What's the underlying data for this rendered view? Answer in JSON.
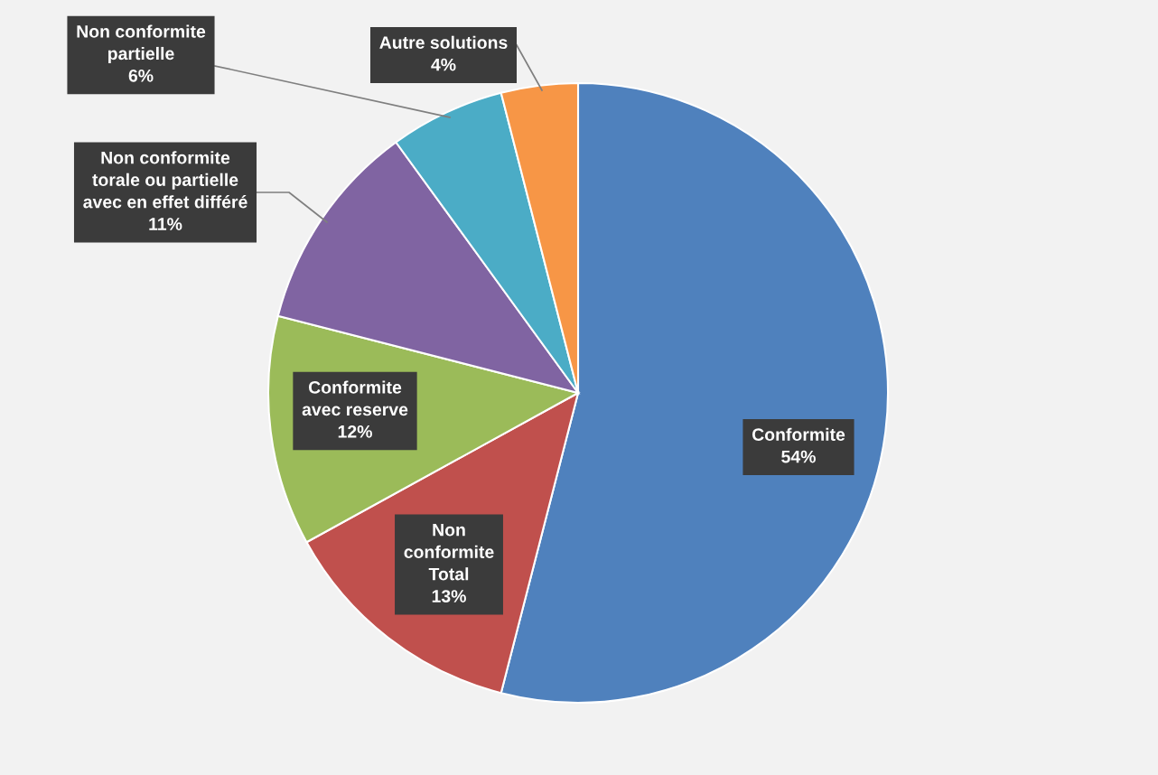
{
  "chart_data": {
    "type": "pie",
    "categories": [
      "Conformite",
      "Non\nconformite\nTotal",
      "Conformite\navec reserve",
      "Non conformite\ntorale ou partielle\navec en effet différé",
      "Non conformite\npartielle",
      "Autre solutions"
    ],
    "values": [
      54,
      13,
      12,
      11,
      6,
      4
    ],
    "colors": [
      "#4f81bd",
      "#c0504d",
      "#9bbb59",
      "#8064a2",
      "#4bacc6",
      "#f79646"
    ],
    "value_labels": [
      "54%",
      "13%",
      "12%",
      "11%",
      "6%",
      "4%"
    ]
  }
}
